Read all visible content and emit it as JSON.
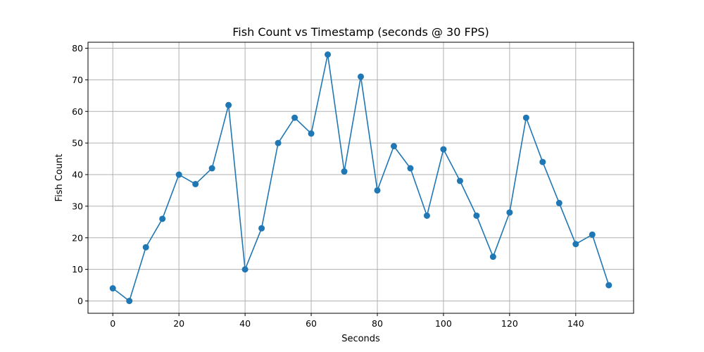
{
  "chart_data": {
    "type": "line",
    "title": "Fish Count vs Timestamp (seconds @ 30 FPS)",
    "xlabel": "Seconds",
    "ylabel": "Fish Count",
    "xlim": [
      -7.5,
      157.5
    ],
    "ylim": [
      -3.9,
      81.9
    ],
    "xticks": [
      0,
      20,
      40,
      60,
      80,
      100,
      120,
      140
    ],
    "yticks": [
      0,
      10,
      20,
      30,
      40,
      50,
      60,
      70,
      80
    ],
    "grid": true,
    "series": [
      {
        "color": "#1f77b4",
        "marker": "circle",
        "x": [
          0,
          5,
          10,
          15,
          20,
          25,
          30,
          35,
          40,
          45,
          50,
          55,
          60,
          65,
          70,
          75,
          80,
          85,
          90,
          95,
          100,
          105,
          110,
          115,
          120,
          125,
          130,
          135,
          140,
          145,
          150
        ],
        "y": [
          4,
          0,
          17,
          26,
          40,
          37,
          42,
          62,
          10,
          23,
          50,
          58,
          53,
          78,
          41,
          71,
          35,
          49,
          42,
          27,
          48,
          38,
          27,
          14,
          28,
          58,
          44,
          31,
          18,
          21,
          5
        ]
      }
    ]
  }
}
